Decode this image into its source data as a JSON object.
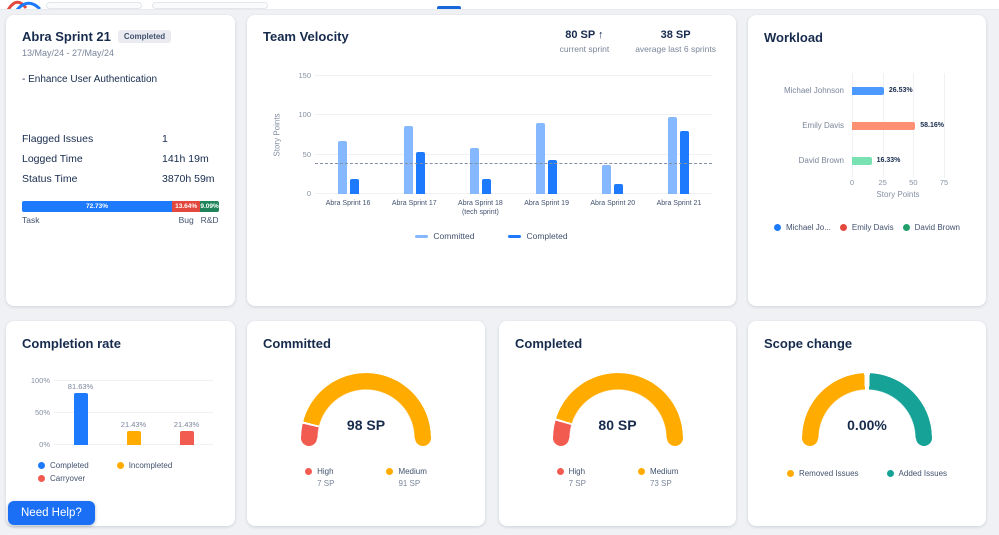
{
  "sprint": {
    "title": "Abra Sprint 21",
    "badge": "Completed",
    "dates": "13/May/24 - 27/May/24",
    "goal": "- Enhance User Authentication",
    "stats": [
      {
        "label": "Flagged Issues",
        "value": "1"
      },
      {
        "label": "Logged Time",
        "value": "141h 19m"
      },
      {
        "label": "Status Time",
        "value": "3870h 59m"
      }
    ],
    "issue_distribution": {
      "segments": [
        {
          "label": "Task",
          "pct_label": "72.73%",
          "value": 72.73,
          "color": "#1d7afc"
        },
        {
          "label": "Bug",
          "pct_label": "13.64%",
          "value": 13.64,
          "color": "#e2483d"
        },
        {
          "label": "R&D",
          "pct_label": "9.09%",
          "value": 9.09,
          "color": "#1f845a"
        }
      ]
    }
  },
  "velocity": {
    "title": "Team Velocity",
    "current": {
      "value": "80 SP ↑",
      "label": "current sprint"
    },
    "average": {
      "value": "38 SP",
      "label": "average last 6 sprints"
    },
    "chart_data": {
      "type": "bar",
      "categories": [
        "Abra Sprint 16",
        "Abra Sprint 17",
        "Abra Sprint 18 (tech sprint)",
        "Abra Sprint 19",
        "Abra Sprint 20",
        "Abra Sprint 21"
      ],
      "series": [
        {
          "name": "Committed",
          "color": "#85b8ff",
          "values": [
            67,
            86,
            59,
            90,
            37,
            98
          ]
        },
        {
          "name": "Completed",
          "color": "#1d7afc",
          "values": [
            19,
            54,
            19,
            43,
            13,
            80
          ]
        }
      ],
      "ylabel": "Story Points",
      "yticks": [
        0,
        50,
        100,
        150
      ],
      "ylim": [
        0,
        150
      ],
      "average_line": 38,
      "legend_position": "bottom"
    }
  },
  "workload": {
    "title": "Workload",
    "chart_data": {
      "type": "bar-horizontal",
      "categories": [
        "Michael Johnson",
        "Emily Davis",
        "David Brown"
      ],
      "values": [
        26,
        57,
        16
      ],
      "labels": [
        "26.53%",
        "58.16%",
        "16.33%"
      ],
      "colors": [
        "#4c9aff",
        "#fd9073",
        "#79e2b3"
      ],
      "xlabel": "Story Points",
      "xticks": [
        0,
        25,
        50,
        75
      ],
      "xlim": [
        0,
        75
      ],
      "legend": [
        {
          "label": "Michael Jo...",
          "color": "#1d7afc"
        },
        {
          "label": "Emily Davis",
          "color": "#e2483d"
        },
        {
          "label": "David Brown",
          "color": "#22a06b"
        }
      ]
    }
  },
  "completion": {
    "title": "Completion rate",
    "chart_data": {
      "type": "bar",
      "categories": [
        "Completed",
        "Incompleted",
        "Carryover"
      ],
      "values": [
        81.63,
        21.43,
        21.43
      ],
      "labels": [
        "81.63%",
        "21.43%",
        "21.43%"
      ],
      "colors": [
        "#1d7afc",
        "#ffab00",
        "#f15b50"
      ],
      "yticks": [
        {
          "label": "0%",
          "v": 0
        },
        {
          "label": "50%",
          "v": 50
        },
        {
          "label": "100%",
          "v": 100
        }
      ],
      "ylim": [
        0,
        100
      ],
      "legend": [
        {
          "label": "Completed",
          "color": "#1d7afc"
        },
        {
          "label": "Incompleted",
          "color": "#ffab00"
        },
        {
          "label": "Carryover",
          "color": "#f15b50"
        }
      ]
    }
  },
  "gauges": {
    "committed": {
      "title": "Committed",
      "value": "98 SP",
      "chart_data": {
        "type": "gauge",
        "total": 98,
        "gap": 2,
        "segments": [
          {
            "label": "High",
            "value": 7,
            "display": "7 SP",
            "color": "#f15b50"
          },
          {
            "label": "Medium",
            "value": 91,
            "display": "91 SP",
            "color": "#ffab00"
          }
        ]
      }
    },
    "completed": {
      "title": "Completed",
      "value": "80 SP",
      "chart_data": {
        "type": "gauge",
        "total": 80,
        "gap": 2,
        "segments": [
          {
            "label": "High",
            "value": 7,
            "display": "7 SP",
            "color": "#f15b50"
          },
          {
            "label": "Medium",
            "value": 73,
            "display": "73 SP",
            "color": "#ffab00"
          }
        ]
      }
    },
    "scope": {
      "title": "Scope change",
      "value": "0.00%",
      "chart_data": {
        "type": "gauge",
        "gap": 5,
        "segments": [
          {
            "label": "Removed Issues",
            "value": 1,
            "color": "#ffab00"
          },
          {
            "label": "Added Issues",
            "value": 1,
            "color": "#16a296"
          }
        ]
      }
    }
  },
  "help": {
    "label": "Need Help?"
  }
}
